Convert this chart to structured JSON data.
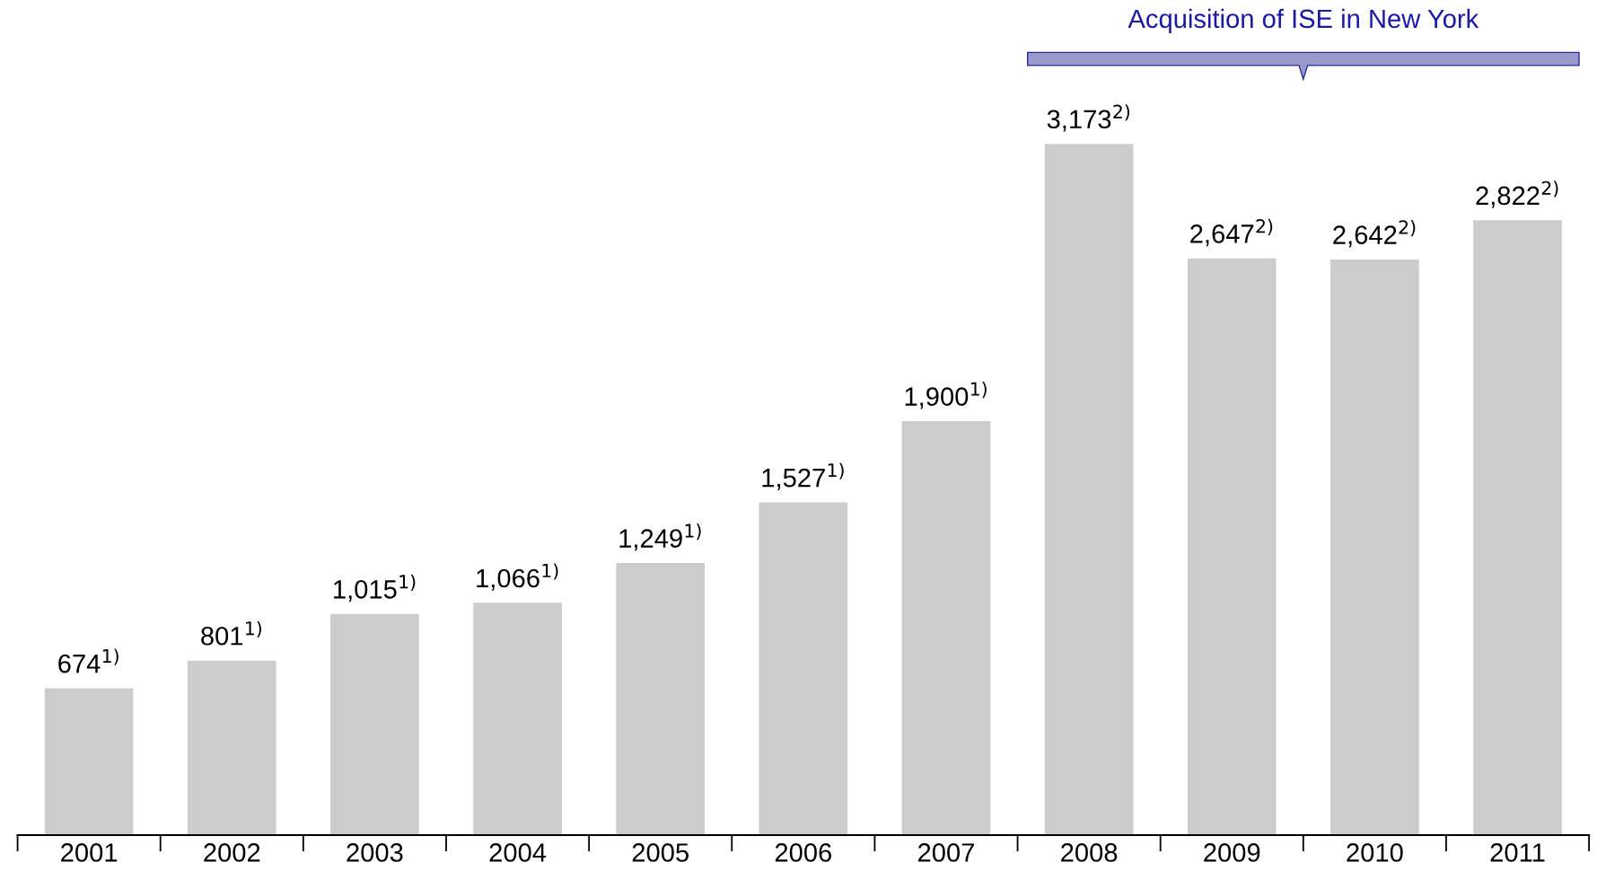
{
  "chart_data": {
    "type": "bar",
    "categories": [
      "2001",
      "2002",
      "2003",
      "2004",
      "2005",
      "2006",
      "2007",
      "2008",
      "2009",
      "2010",
      "2011"
    ],
    "values": [
      674,
      801,
      1015,
      1066,
      1249,
      1527,
      1900,
      3173,
      2647,
      2642,
      2822
    ],
    "value_labels": [
      "674$^{1)}$",
      "801$^{1)}$",
      "1,015$^{1)}$",
      "1,066$^{1)}$",
      "1,249$^{1)}$",
      "1,527$^{1)}$",
      "1,900$^{1)}$",
      "3,173$^{2)}$",
      "2,647$^{2)}$",
      "2,642$^{2)}$",
      "2,822$^{2)}$"
    ],
    "color": "#cccccc",
    "annotations": [
      "Acquisition of ISE in New York"
    ]
  }
}
